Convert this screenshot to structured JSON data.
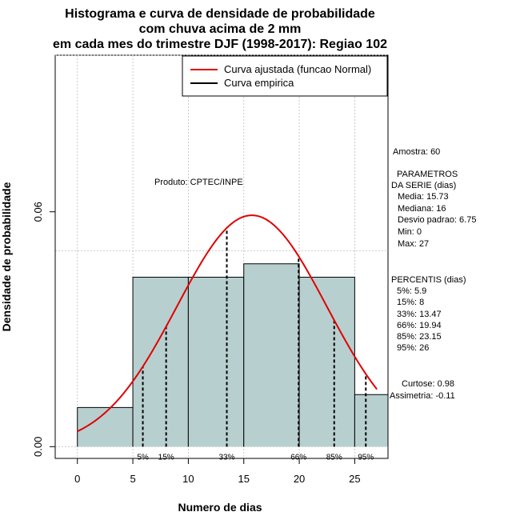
{
  "chart_data": {
    "type": "histogram",
    "title_lines": [
      "Histograma e curva de densidade de probabilidade",
      "com chuva acima de 2 mm",
      "em cada mes do trimestre DJF (1998-2017): Regiao 102"
    ],
    "xlabel": "Numero de dias",
    "ylabel": "Densidade de probabilidade",
    "xlim": [
      -2,
      28
    ],
    "ylim": [
      -0.003,
      0.1
    ],
    "x_ticks": [
      0,
      5,
      10,
      15,
      20,
      25
    ],
    "y_ticks": [
      0.0,
      0.06
    ],
    "y_tick_labels": [
      "0.00",
      "0.06"
    ],
    "grid_x": [
      0,
      5,
      10,
      15,
      20,
      25
    ],
    "grid_y": [
      0.0,
      0.05,
      0.1
    ],
    "bins": [
      {
        "start": 0,
        "end": 5,
        "density": 0.01
      },
      {
        "start": 5,
        "end": 10,
        "density": 0.0433
      },
      {
        "start": 10,
        "end": 15,
        "density": 0.0433
      },
      {
        "start": 15,
        "end": 20,
        "density": 0.0467
      },
      {
        "start": 20,
        "end": 25,
        "density": 0.0433
      },
      {
        "start": 25,
        "end": 28,
        "density": 0.0133
      }
    ],
    "bar_color": "#b8cfcf",
    "normal_fit": {
      "mean": 15.73,
      "sd": 6.75,
      "x_range": [
        0,
        27
      ],
      "color": "#e00000"
    },
    "percentile_lines": [
      {
        "label": "5%",
        "value": 5.9
      },
      {
        "label": "15%",
        "value": 8
      },
      {
        "label": "33%",
        "value": 13.47
      },
      {
        "label": "66%",
        "value": 19.94
      },
      {
        "label": "85%",
        "value": 23.15
      },
      {
        "label": "95%",
        "value": 26
      }
    ],
    "legend": {
      "position": "top-right",
      "entries": [
        {
          "label": "Curva ajustada (funcao Normal)",
          "color": "#e00000"
        },
        {
          "label": "Curva empirica",
          "color": "#000000"
        }
      ]
    },
    "annotation_product": "Produto: CPTEC/INPE",
    "stats_text": {
      "sample": "Amostra: 60",
      "params_header_1": "PARAMETROS",
      "params_header_2": "DA SERIE (dias)",
      "media": "Media: 15.73",
      "mediana": "Mediana: 16",
      "desvio": "Desvio padrao: 6.75",
      "min": "Min: 0",
      "max": "Max: 27",
      "percentis_header": "PERCENTIS (dias)",
      "p5": "5%: 5.9",
      "p15": "15%: 8",
      "p33": "33%: 13.47",
      "p66": "66%: 19.94",
      "p85": "85%: 23.15",
      "p95": "95%: 26",
      "curtose": "Curtose: 0.98",
      "assimetria": "Assimetria: -0.11"
    }
  }
}
